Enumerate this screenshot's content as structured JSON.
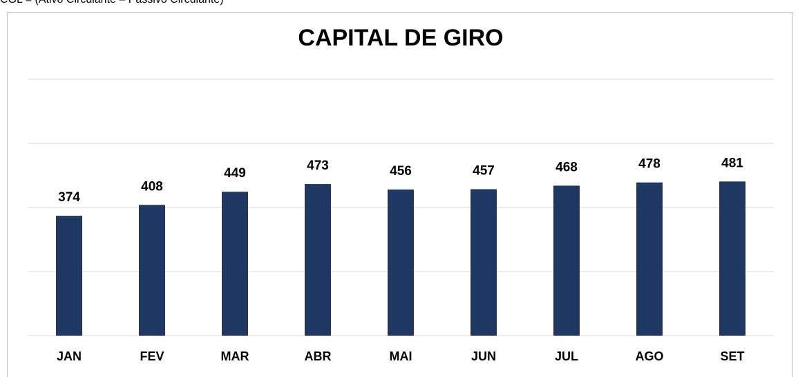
{
  "header_text": "CGL = (Ativo Circulante – Passivo Circulante)",
  "chart_data": {
    "type": "bar",
    "title": "CAPITAL DE GIRO",
    "categories": [
      "JAN",
      "FEV",
      "MAR",
      "ABR",
      "MAI",
      "JUN",
      "JUL",
      "AGO",
      "SET"
    ],
    "values": [
      374,
      408,
      449,
      473,
      456,
      457,
      468,
      478,
      481
    ],
    "color": "#203864",
    "ylim": [
      0,
      800
    ],
    "yticks": [
      0,
      200,
      400,
      600,
      800
    ],
    "grid": true
  }
}
